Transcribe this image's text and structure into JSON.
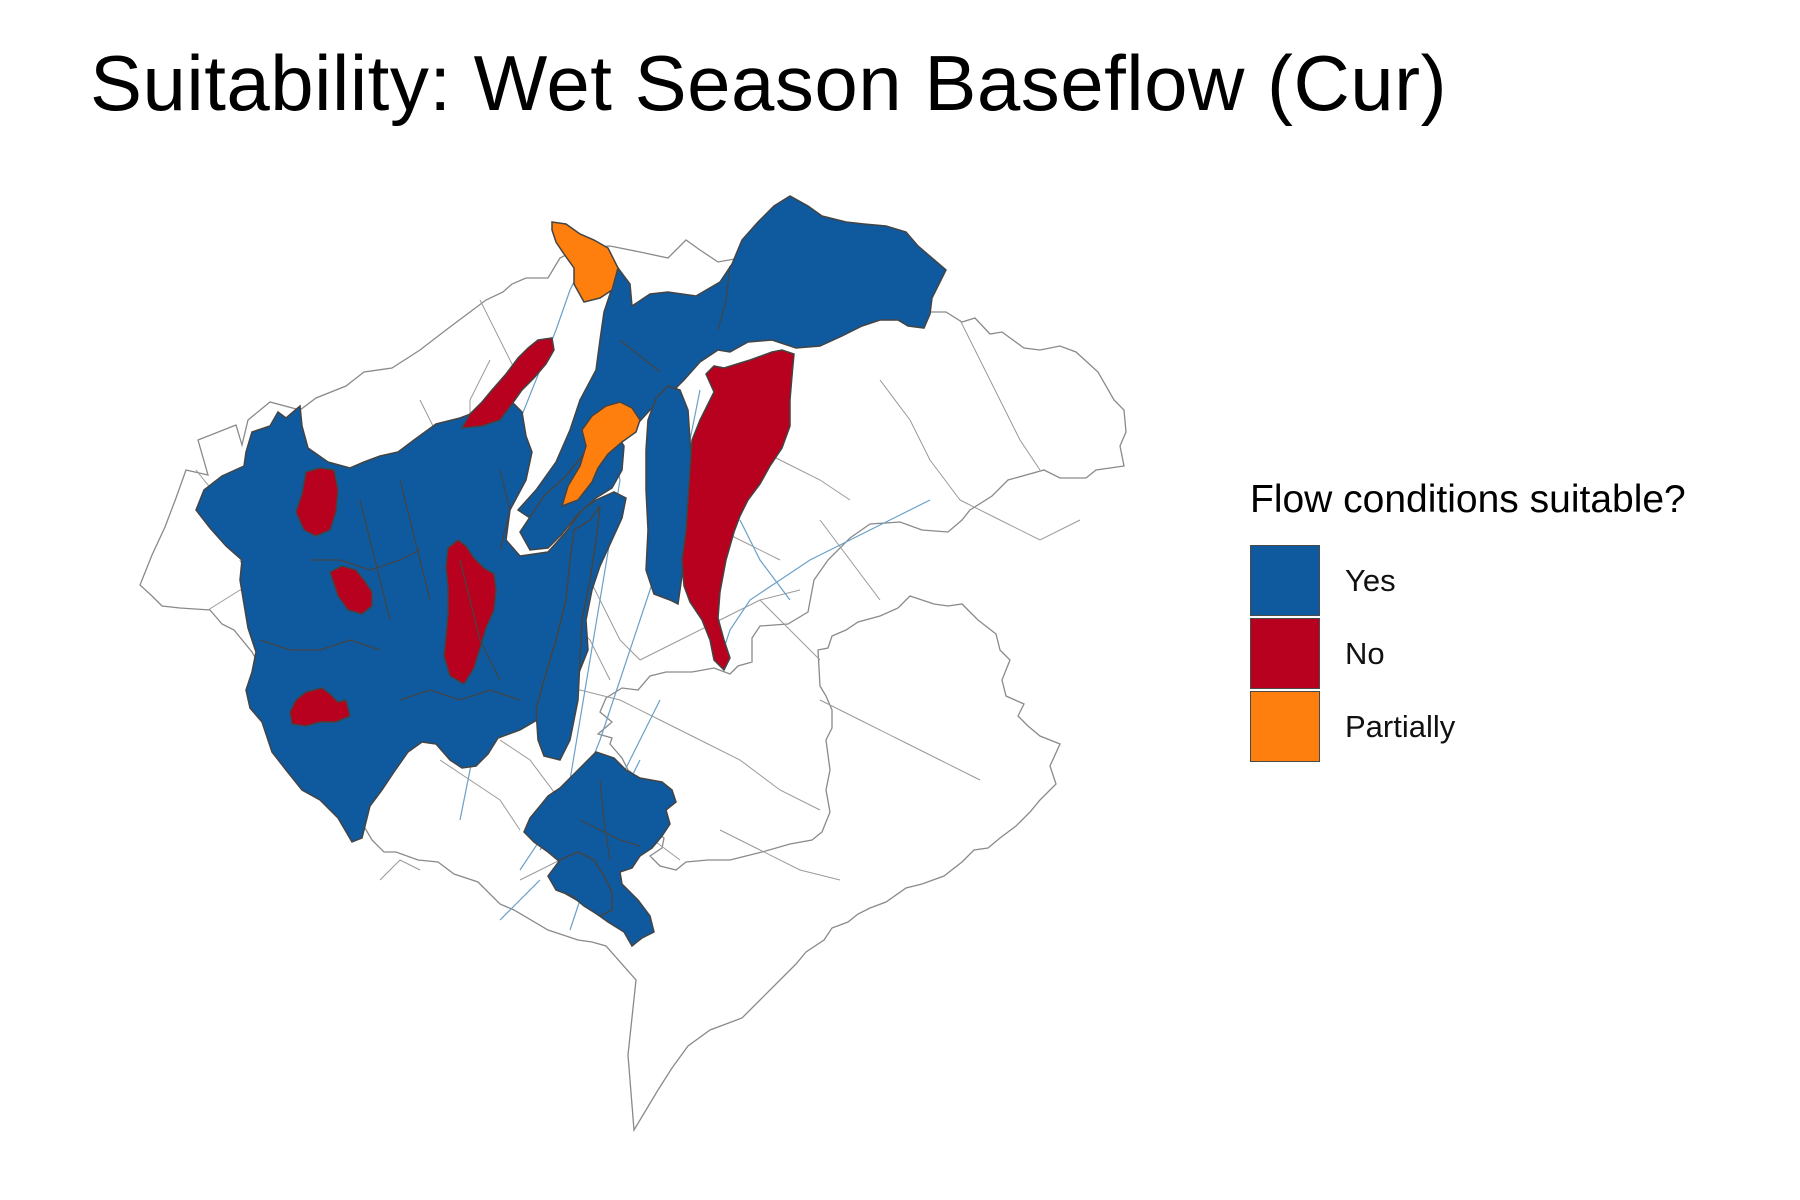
{
  "title": "Suitability: Wet Season Baseflow (Cur)",
  "legend": {
    "title": "Flow conditions suitable?",
    "items": [
      {
        "label": "Yes",
        "color": "#0f5a9e"
      },
      {
        "label": "No",
        "color": "#b8001f"
      },
      {
        "label": "Partially",
        "color": "#ff7f0e"
      }
    ]
  },
  "colors": {
    "background": "#ffffff",
    "boundary": "#7a7a7a",
    "region_border": "#444444",
    "river": "#6aa0c8"
  }
}
